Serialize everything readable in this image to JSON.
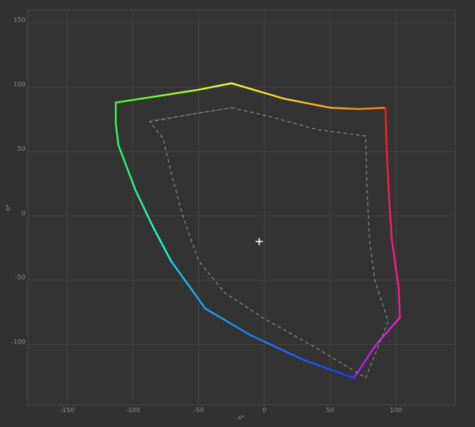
{
  "chart_data": {
    "type": "line",
    "title": "",
    "xlabel": "a*",
    "ylabel": "b*",
    "xlim": [
      -180,
      145
    ],
    "ylim": [
      -147,
      160
    ],
    "grid": true,
    "x_ticks": [
      -150,
      -100,
      -50,
      0,
      50,
      100
    ],
    "y_ticks": [
      150,
      100,
      50,
      0,
      -50,
      -100
    ],
    "white_point": {
      "x": -4,
      "y": -20,
      "color": "#ffffff"
    },
    "series": [
      {
        "style": "solid-gradient",
        "segments": [
          {
            "from_color": "#ffff33",
            "to_color": "#ff7a1a",
            "points": [
              [
                -25,
                103
              ],
              [
                15,
                91
              ],
              [
                50,
                84
              ],
              [
                72,
                83
              ],
              [
                92,
                84
              ]
            ]
          },
          {
            "from_color": "#ff1a1a",
            "to_color": "#ff1aa8",
            "points": [
              [
                92,
                84
              ],
              [
                93,
                50
              ],
              [
                95,
                10
              ],
              [
                97,
                -20
              ],
              [
                102,
                -55
              ],
              [
                103,
                -79
              ]
            ]
          },
          {
            "from_color": "#ff1ae0",
            "to_color": "#b41aff",
            "points": [
              [
                103,
                -79
              ],
              [
                85,
                -100
              ],
              [
                68,
                -126
              ]
            ]
          },
          {
            "from_color": "#1a3cff",
            "to_color": "#1acdff",
            "points": [
              [
                68,
                -126
              ],
              [
                30,
                -112
              ],
              [
                -10,
                -93
              ],
              [
                -45,
                -72
              ],
              [
                -71,
                -35
              ]
            ]
          },
          {
            "from_color": "#1affe6",
            "to_color": "#33ff33",
            "points": [
              [
                -71,
                -35
              ],
              [
                -85,
                -8
              ],
              [
                -98,
                20
              ],
              [
                -111,
                55
              ],
              [
                -113,
                72
              ],
              [
                -113,
                88
              ]
            ]
          },
          {
            "from_color": "#33ff33",
            "to_color": "#ffff33",
            "points": [
              [
                -113,
                88
              ],
              [
                -75,
                94
              ],
              [
                -50,
                98
              ],
              [
                -25,
                103
              ]
            ]
          }
        ]
      },
      {
        "style": "dashed",
        "color": "#8a8a8a",
        "points": [
          [
            -25,
            84
          ],
          [
            5,
            77
          ],
          [
            40,
            67
          ],
          [
            77,
            62
          ],
          [
            78,
            20
          ],
          [
            80,
            -20
          ],
          [
            84,
            -50
          ],
          [
            94,
            -82
          ],
          [
            77,
            -126
          ],
          [
            40,
            -103
          ],
          [
            0,
            -80
          ],
          [
            -30,
            -60
          ],
          [
            -50,
            -35
          ],
          [
            -62,
            0
          ],
          [
            -70,
            30
          ],
          [
            -77,
            60
          ],
          [
            -87,
            73
          ],
          [
            -55,
            79
          ],
          [
            -25,
            84
          ]
        ]
      },
      {
        "style": "dotted",
        "color": "#8a8a8a",
        "points": [
          [
            -87,
            74
          ],
          [
            -60,
            78
          ],
          [
            -25,
            84
          ]
        ]
      }
    ]
  }
}
